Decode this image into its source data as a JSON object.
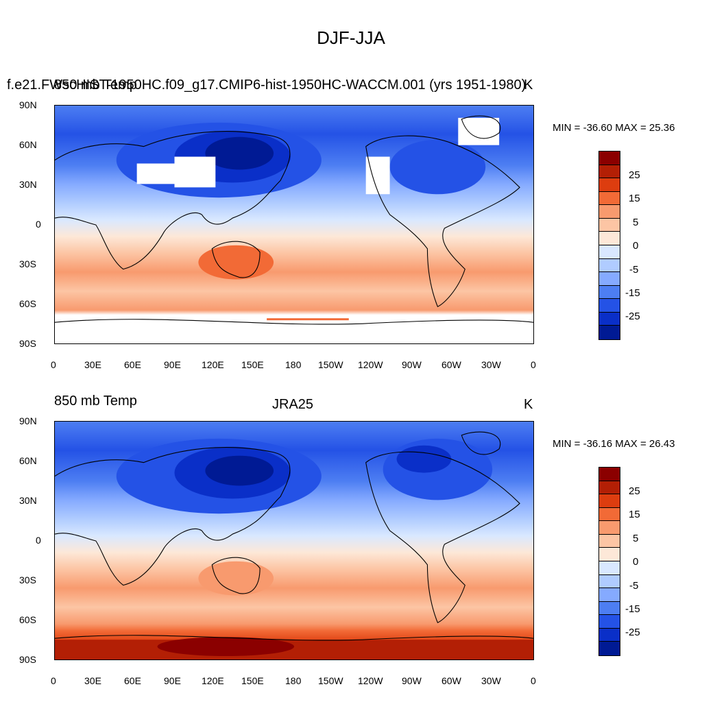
{
  "title": "DJF-JJA",
  "colorbar": {
    "colors": [
      "#8b0000",
      "#b31f05",
      "#dd3d0f",
      "#f26a36",
      "#f89a6e",
      "#fcc5a4",
      "#fde8d8",
      "#d9e8ff",
      "#b0ccff",
      "#85aaff",
      "#4d7ef2",
      "#2452e6",
      "#0a2fc8",
      "#001a94"
    ],
    "labels": [
      "25",
      "15",
      "5",
      "0",
      "-5",
      "-15",
      "-25"
    ]
  },
  "axes": {
    "lon_ticks": [
      "0",
      "30E",
      "60E",
      "90E",
      "120E",
      "150E",
      "180",
      "150W",
      "120W",
      "90W",
      "60W",
      "30W",
      "0"
    ],
    "lat_ticks": [
      "90N",
      "60N",
      "30N",
      "0",
      "30S",
      "60S",
      "90S"
    ]
  },
  "panels": [
    {
      "left": "f.e21.FWscHIST-1950HC.f09_g17.CMIP6-hist-1950HC-WACCM.001 (yrs 1951-1980)",
      "left_overlap": "850 mb Temp",
      "center": "",
      "right": "K",
      "minmax": "MIN = -36.60 MAX =  25.36"
    },
    {
      "left": "850 mb Temp",
      "center": "JRA25",
      "right": "K",
      "minmax": "MIN = -36.16 MAX =  26.43"
    }
  ],
  "map_field": {
    "variable": "850 mb Temp",
    "units": "K",
    "projection": "cylindrical-equidistant",
    "lon_range": [
      0,
      360
    ],
    "lat_range": [
      -90,
      90
    ],
    "contour_levels": [
      -30,
      -25,
      -20,
      -15,
      -10,
      -5,
      0,
      5,
      10,
      15,
      20,
      25,
      30
    ],
    "features": [
      "coastlines",
      "filled-contours",
      "missing-data-white (panel 1)"
    ]
  }
}
